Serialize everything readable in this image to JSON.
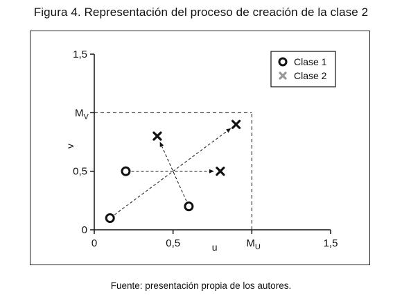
{
  "figure": {
    "title": "Figura 4. Representación del proceso de creación de la clase 2",
    "source": "Fuente: presentación propia de los autores."
  },
  "chart_data": {
    "type": "scatter",
    "xlabel": "u",
    "ylabel": "v",
    "xlim": [
      0,
      1.5
    ],
    "ylim": [
      0,
      1.5
    ],
    "xticks": [
      {
        "value": 0,
        "label": "0"
      },
      {
        "value": 0.5,
        "label": "0,5"
      },
      {
        "value": 1.0,
        "label": "M_U"
      },
      {
        "value": 1.5,
        "label": "1,5"
      }
    ],
    "yticks": [
      {
        "value": 0,
        "label": "0"
      },
      {
        "value": 0.5,
        "label": "0,5"
      },
      {
        "value": 1.0,
        "label": "M_V"
      },
      {
        "value": 1.5,
        "label": "1,5"
      }
    ],
    "bounds": {
      "x_label_main": "M",
      "x_label_sub": "U",
      "x": 1.0,
      "y_label_main": "M",
      "y_label_sub": "V",
      "y": 1.0
    },
    "series": [
      {
        "name": "Clase 1",
        "marker": "circle",
        "color": "#111111",
        "points": [
          [
            0.1,
            0.1
          ],
          [
            0.2,
            0.5
          ],
          [
            0.6,
            0.2
          ]
        ]
      },
      {
        "name": "Clase 2",
        "marker": "x",
        "color": "#111111",
        "points": [
          [
            0.9,
            0.9
          ],
          [
            0.8,
            0.5
          ],
          [
            0.4,
            0.8
          ]
        ]
      }
    ],
    "arrows": [
      {
        "from": [
          0.1,
          0.1
        ],
        "to": [
          0.9,
          0.9
        ]
      },
      {
        "from": [
          0.2,
          0.5
        ],
        "to": [
          0.8,
          0.5
        ]
      },
      {
        "from": [
          0.6,
          0.2
        ],
        "to": [
          0.4,
          0.8
        ]
      }
    ],
    "legend": {
      "position": "top-right",
      "legend_x_color": "#999999"
    },
    "grid": false
  }
}
